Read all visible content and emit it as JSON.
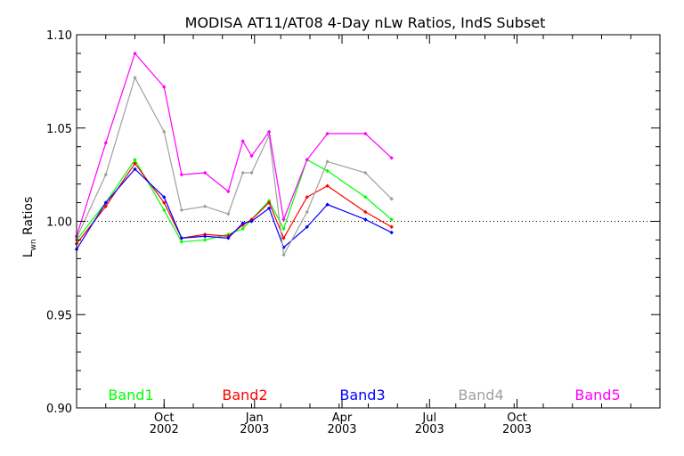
{
  "chart_data": {
    "type": "line",
    "title": "MODISA AT11/AT08 4-Day nLw Ratios, IndS Subset",
    "ylabel_main": "L",
    "ylabel_sub": "wn",
    "ylabel_rest": " Ratios",
    "xlabel": "",
    "ylim": [
      0.9,
      1.1
    ],
    "yticks": [
      "0.90",
      "0.95",
      "1.00",
      "1.05",
      "1.10"
    ],
    "reference_line": 1.0,
    "xlim": [
      0,
      20
    ],
    "xticks": [
      {
        "x": 3.0,
        "month": "Oct",
        "year": "2002"
      },
      {
        "x": 6.1,
        "month": "Jan",
        "year": "2003"
      },
      {
        "x": 9.1,
        "month": "Apr",
        "year": "2003"
      },
      {
        "x": 12.1,
        "month": "Jul",
        "year": "2003"
      },
      {
        "x": 15.1,
        "month": "Oct",
        "year": "2003"
      }
    ],
    "x": [
      0.0,
      1.0,
      2.0,
      3.0,
      3.6,
      4.4,
      5.2,
      5.7,
      6.0,
      6.6,
      7.1,
      7.9,
      8.6,
      9.9,
      10.8,
      11.5,
      12.8,
      14.0,
      15.2,
      16.1
    ],
    "series": [
      {
        "name": "Band1",
        "color": "#00ff00",
        "values": [
          0.99,
          1.01,
          1.033,
          1.006,
          0.989,
          0.99,
          0.993,
          0.996,
          1.001,
          1.011,
          0.996,
          1.033,
          1.027,
          1.013,
          1.001,
          null,
          null,
          null,
          null,
          null
        ]
      },
      {
        "name": "Band2",
        "color": "#ff0000",
        "values": [
          0.988,
          1.008,
          1.031,
          1.01,
          0.991,
          0.993,
          0.992,
          0.998,
          1.001,
          1.01,
          0.991,
          1.013,
          1.019,
          1.005,
          0.997,
          null,
          null,
          null,
          null,
          null
        ]
      },
      {
        "name": "Band3",
        "color": "#0000ff",
        "values": [
          0.985,
          1.01,
          1.028,
          1.013,
          0.991,
          0.992,
          0.991,
          0.999,
          1.0,
          1.007,
          0.986,
          0.997,
          1.009,
          1.001,
          0.994,
          null,
          null,
          null,
          null,
          null
        ]
      },
      {
        "name": "Band4",
        "color": "#a0a0a0",
        "values": [
          0.991,
          1.025,
          1.077,
          1.048,
          1.006,
          1.008,
          1.004,
          1.026,
          1.026,
          1.046,
          0.982,
          1.005,
          1.032,
          1.026,
          1.012,
          null,
          null,
          null,
          null,
          null
        ]
      },
      {
        "name": "Band5",
        "color": "#ff00ff",
        "values": [
          0.992,
          1.042,
          1.09,
          1.072,
          1.025,
          1.026,
          1.016,
          1.043,
          1.035,
          1.048,
          1.001,
          1.033,
          1.047,
          1.047,
          1.034,
          null,
          null,
          null,
          null,
          null
        ]
      }
    ]
  }
}
